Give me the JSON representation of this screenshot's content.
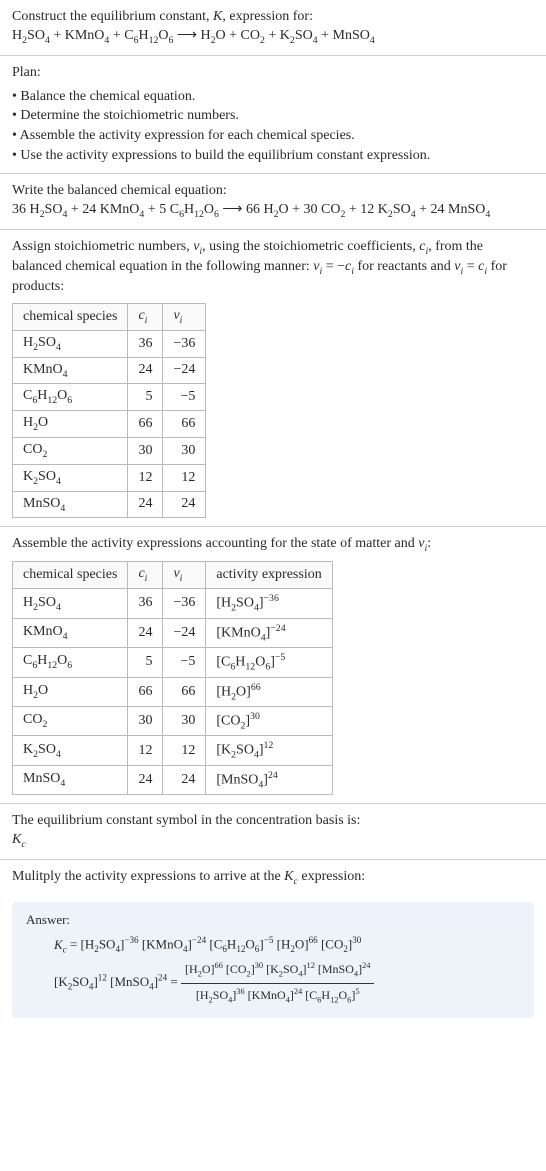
{
  "header": {
    "line1": "Construct the equilibrium constant, <span class=\"italic\">K</span>, expression for:",
    "line2": "H<sub>2</sub>SO<sub>4</sub> + KMnO<sub>4</sub> + C<sub>6</sub>H<sub>12</sub>O<sub>6</sub> &#10230; H<sub>2</sub>O + CO<sub>2</sub> + K<sub>2</sub>SO<sub>4</sub> + MnSO<sub>4</sub>"
  },
  "plan": {
    "title": "Plan:",
    "items": [
      "Balance the chemical equation.",
      "Determine the stoichiometric numbers.",
      "Assemble the activity expression for each chemical species.",
      "Use the activity expressions to build the equilibrium constant expression."
    ]
  },
  "balanced": {
    "intro": "Write the balanced chemical equation:",
    "eq": "36 H<sub>2</sub>SO<sub>4</sub> + 24 KMnO<sub>4</sub> + 5 C<sub>6</sub>H<sub>12</sub>O<sub>6</sub> &#10230; 66 H<sub>2</sub>O + 30 CO<sub>2</sub> + 12 K<sub>2</sub>SO<sub>4</sub> + 24 MnSO<sub>4</sub>"
  },
  "assign": {
    "intro": "Assign stoichiometric numbers, <span class=\"italic\">&nu;<sub>i</sub></span>, using the stoichiometric coefficients, <span class=\"italic\">c<sub>i</sub></span>, from the balanced chemical equation in the following manner: <span class=\"italic\">&nu;<sub>i</sub></span> = &minus;<span class=\"italic\">c<sub>i</sub></span> for reactants and <span class=\"italic\">&nu;<sub>i</sub></span> = <span class=\"italic\">c<sub>i</sub></span> for products:"
  },
  "table1": {
    "headers": [
      "chemical species",
      "<span class=\"italic\">c<sub>i</sub></span>",
      "<span class=\"italic\">&nu;<sub>i</sub></span>"
    ],
    "rows": [
      [
        "H<sub>2</sub>SO<sub>4</sub>",
        "36",
        "&minus;36"
      ],
      [
        "KMnO<sub>4</sub>",
        "24",
        "&minus;24"
      ],
      [
        "C<sub>6</sub>H<sub>12</sub>O<sub>6</sub>",
        "5",
        "&minus;5"
      ],
      [
        "H<sub>2</sub>O",
        "66",
        "66"
      ],
      [
        "CO<sub>2</sub>",
        "30",
        "30"
      ],
      [
        "K<sub>2</sub>SO<sub>4</sub>",
        "12",
        "12"
      ],
      [
        "MnSO<sub>4</sub>",
        "24",
        "24"
      ]
    ]
  },
  "assemble": {
    "intro": "Assemble the activity expressions accounting for the state of matter and <span class=\"italic\">&nu;<sub>i</sub></span>:"
  },
  "table2": {
    "headers": [
      "chemical species",
      "<span class=\"italic\">c<sub>i</sub></span>",
      "<span class=\"italic\">&nu;<sub>i</sub></span>",
      "activity expression"
    ],
    "rows": [
      [
        "H<sub>2</sub>SO<sub>4</sub>",
        "36",
        "&minus;36",
        "[H<sub>2</sub>SO<sub>4</sub>]<sup>&minus;36</sup>"
      ],
      [
        "KMnO<sub>4</sub>",
        "24",
        "&minus;24",
        "[KMnO<sub>4</sub>]<sup>&minus;24</sup>"
      ],
      [
        "C<sub>6</sub>H<sub>12</sub>O<sub>6</sub>",
        "5",
        "&minus;5",
        "[C<sub>6</sub>H<sub>12</sub>O<sub>6</sub>]<sup>&minus;5</sup>"
      ],
      [
        "H<sub>2</sub>O",
        "66",
        "66",
        "[H<sub>2</sub>O]<sup>66</sup>"
      ],
      [
        "CO<sub>2</sub>",
        "30",
        "30",
        "[CO<sub>2</sub>]<sup>30</sup>"
      ],
      [
        "K<sub>2</sub>SO<sub>4</sub>",
        "12",
        "12",
        "[K<sub>2</sub>SO<sub>4</sub>]<sup>12</sup>"
      ],
      [
        "MnSO<sub>4</sub>",
        "24",
        "24",
        "[MnSO<sub>4</sub>]<sup>24</sup>"
      ]
    ]
  },
  "symbol": {
    "line1": "The equilibrium constant symbol in the concentration basis is:",
    "line2": "<span class=\"italic\">K<sub>c</sub></span>"
  },
  "multiply": {
    "text": "Mulitply the activity expressions to arrive at the <span class=\"italic\">K<sub>c</sub></span> expression:"
  },
  "answer": {
    "label": "Answer:",
    "line1": "<span class=\"italic\">K<sub>c</sub></span> = [H<sub>2</sub>SO<sub>4</sub>]<sup>&minus;36</sup> [KMnO<sub>4</sub>]<sup>&minus;24</sup> [C<sub>6</sub>H<sub>12</sub>O<sub>6</sub>]<sup>&minus;5</sup> [H<sub>2</sub>O]<sup>66</sup> [CO<sub>2</sub>]<sup>30</sup>",
    "line2_pre": "[K<sub>2</sub>SO<sub>4</sub>]<sup>12</sup> [MnSO<sub>4</sub>]<sup>24</sup> = ",
    "frac_num": "[H<sub>2</sub>O]<sup>66</sup> [CO<sub>2</sub>]<sup>30</sup> [K<sub>2</sub>SO<sub>4</sub>]<sup>12</sup> [MnSO<sub>4</sub>]<sup>24</sup>",
    "frac_den": "[H<sub>2</sub>SO<sub>4</sub>]<sup>36</sup> [KMnO<sub>4</sub>]<sup>24</sup> [C<sub>6</sub>H<sub>12</sub>O<sub>6</sub>]<sup>5</sup>"
  },
  "style": {
    "text_color": "#2a2a2a",
    "border_color": "#cccccc",
    "answer_bg": "#eef3f9"
  }
}
